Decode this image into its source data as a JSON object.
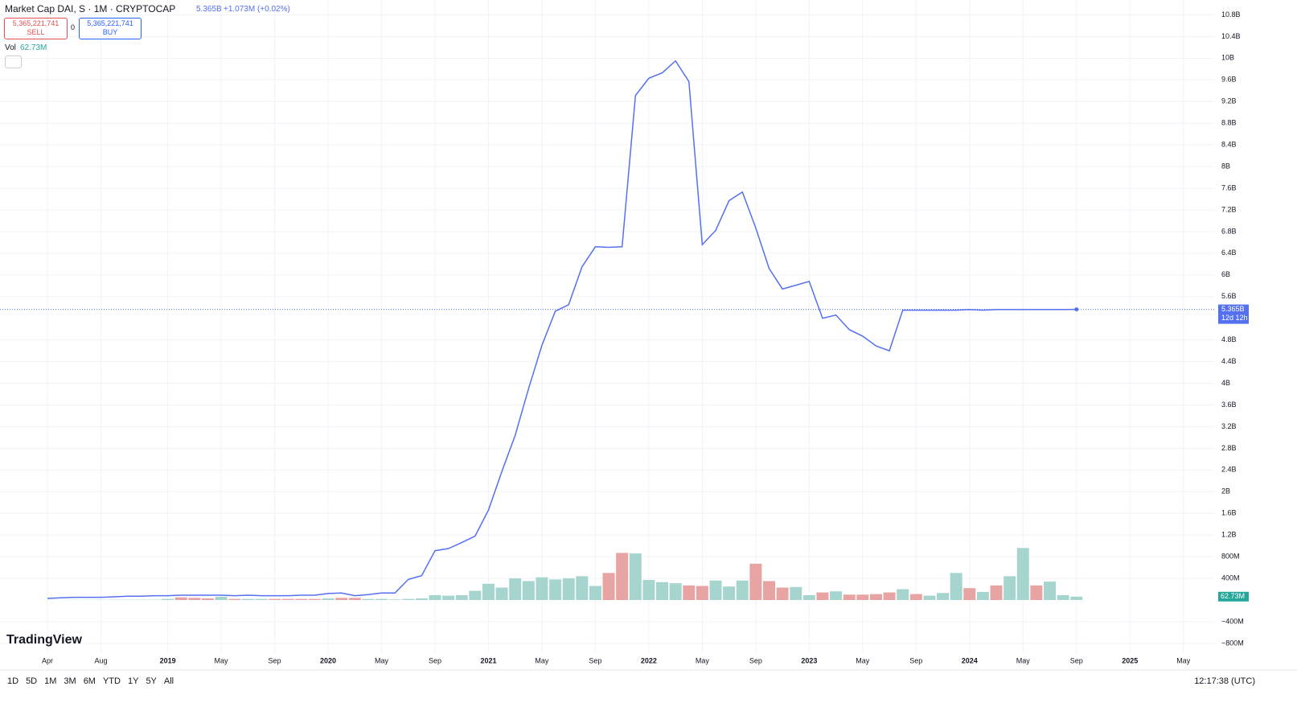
{
  "header": {
    "title": "Market Cap DAI, S · 1M · CRYPTOCAP",
    "price": "5.365B",
    "change": "+1.073M (+0.02%)",
    "sell_price": "5,365,221,741",
    "sell": "SELL",
    "spread": "0",
    "buy_price": "5,365,221,741",
    "buy": "BUY",
    "vol_label": "Vol",
    "vol_value": "62.73M"
  },
  "toolbar": {
    "brand": "TradingView",
    "ranges": [
      "1D",
      "5D",
      "1M",
      "3M",
      "6M",
      "YTD",
      "1Y",
      "5Y",
      "All"
    ],
    "clock": "12:17:38 (UTC)"
  },
  "chart_data": {
    "type": "line",
    "categories": [
      "Apr",
      null,
      null,
      null,
      "Aug",
      null,
      null,
      null,
      null,
      "2019",
      null,
      null,
      null,
      "May",
      null,
      null,
      null,
      "Sep",
      null,
      null,
      null,
      "2020",
      null,
      null,
      null,
      "May",
      null,
      null,
      null,
      "Sep",
      null,
      null,
      null,
      "2021",
      null,
      null,
      null,
      "May",
      null,
      null,
      null,
      "Sep",
      null,
      null,
      null,
      "2022",
      null,
      null,
      null,
      "May",
      null,
      null,
      null,
      "Sep",
      null,
      null,
      null,
      "2023",
      null,
      null,
      null,
      "May",
      null,
      null,
      null,
      "Sep",
      null,
      null,
      null,
      "2024",
      null,
      null,
      null,
      "May",
      null,
      null,
      null,
      "Sep",
      null,
      null,
      null,
      "2025",
      null,
      null,
      null,
      "May"
    ],
    "series": [
      {
        "name": "Market Cap DAI",
        "color": "#5470f0",
        "values": [
          0.03,
          0.04,
          0.05,
          0.05,
          0.05,
          0.06,
          0.07,
          0.07,
          0.08,
          0.08,
          0.09,
          0.09,
          0.09,
          0.09,
          0.08,
          0.09,
          0.08,
          0.08,
          0.08,
          0.09,
          0.09,
          0.12,
          0.13,
          0.08,
          0.1,
          0.13,
          0.13,
          0.38,
          0.45,
          0.91,
          0.95,
          1.06,
          1.18,
          1.66,
          2.37,
          3.04,
          3.9,
          4.7,
          5.33,
          5.45,
          6.15,
          6.52,
          6.51,
          6.52,
          9.31,
          9.63,
          9.73,
          9.95,
          9.57,
          6.56,
          6.82,
          7.37,
          7.53,
          6.87,
          6.12,
          5.74,
          5.81,
          5.88,
          5.2,
          5.26,
          4.99,
          4.87,
          4.69,
          4.6,
          5.35,
          5.35,
          5.35,
          5.35,
          5.35,
          5.36,
          5.35,
          5.36,
          5.36,
          5.36,
          5.36,
          5.36,
          5.36,
          5.365,
          null,
          null,
          null,
          null,
          null,
          null,
          null,
          null
        ]
      },
      {
        "name": "Vol",
        "type": "bar",
        "values": [
          0.002,
          0.003,
          0.004,
          0.004,
          0.005,
          0.006,
          0.006,
          0.007,
          0.008,
          0.02,
          0.05,
          0.04,
          0.03,
          0.06,
          0.02,
          0.02,
          0.02,
          0.02,
          0.02,
          0.02,
          0.02,
          0.03,
          0.04,
          0.04,
          0.02,
          0.02,
          0.01,
          0.02,
          0.03,
          0.09,
          0.08,
          0.09,
          0.17,
          0.3,
          0.23,
          0.4,
          0.35,
          0.42,
          0.38,
          0.4,
          0.44,
          0.26,
          0.5,
          0.87,
          0.86,
          0.37,
          0.33,
          0.31,
          0.27,
          0.26,
          0.36,
          0.25,
          0.36,
          0.67,
          0.35,
          0.23,
          0.24,
          0.09,
          0.14,
          0.16,
          0.1,
          0.1,
          0.11,
          0.14,
          0.2,
          0.11,
          0.08,
          0.13,
          0.5,
          0.22,
          0.15,
          0.27,
          0.44,
          0.96,
          0.27,
          0.34,
          0.09,
          0.06273,
          null,
          null,
          null,
          null,
          null,
          null,
          null,
          null
        ],
        "colors": [
          "#a6d5cf",
          "#a6d5cf",
          "#a6d5cf",
          "#a6d5cf",
          "#a6d5cf",
          "#a6d5cf",
          "#a6d5cf",
          "#a6d5cf",
          "#a6d5cf",
          "#a6d5cf",
          "#e8a3a3",
          "#e8a3a3",
          "#e8a3a3",
          "#a6d5cf",
          "#e8a3a3",
          "#a6d5cf",
          "#a6d5cf",
          "#e8a3a3",
          "#e8a3a3",
          "#e8a3a3",
          "#e8a3a3",
          "#a6d5cf",
          "#e8a3a3",
          "#e8a3a3",
          "#a6d5cf",
          "#a6d5cf",
          "#a6d5cf",
          "#a6d5cf",
          "#a6d5cf",
          "#a6d5cf",
          "#a6d5cf",
          "#a6d5cf",
          "#a6d5cf",
          "#a6d5cf",
          "#a6d5cf",
          "#a6d5cf",
          "#a6d5cf",
          "#a6d5cf",
          "#a6d5cf",
          "#a6d5cf",
          "#a6d5cf",
          "#a6d5cf",
          "#e8a3a3",
          "#e8a3a3",
          "#a6d5cf",
          "#a6d5cf",
          "#a6d5cf",
          "#a6d5cf",
          "#e8a3a3",
          "#e8a3a3",
          "#a6d5cf",
          "#a6d5cf",
          "#a6d5cf",
          "#e8a3a3",
          "#e8a3a3",
          "#e8a3a3",
          "#a6d5cf",
          "#a6d5cf",
          "#e8a3a3",
          "#a6d5cf",
          "#e8a3a3",
          "#e8a3a3",
          "#e8a3a3",
          "#e8a3a3",
          "#a6d5cf",
          "#e8a3a3",
          "#a6d5cf",
          "#a6d5cf",
          "#a6d5cf",
          "#e8a3a3",
          "#a6d5cf",
          "#e8a3a3",
          "#a6d5cf",
          "#a6d5cf",
          "#e8a3a3",
          "#a6d5cf",
          "#a6d5cf",
          "#a6d5cf",
          null,
          null,
          null,
          null,
          null,
          null,
          null,
          null
        ]
      }
    ],
    "ylim": [
      -0.95,
      11.0
    ],
    "yticks": [
      {
        "value": -0.8,
        "label": "−800M"
      },
      {
        "value": -0.4,
        "label": "−400M"
      },
      {
        "value": 0.4,
        "label": "400M"
      },
      {
        "value": 0.8,
        "label": "800M"
      },
      {
        "value": 1.2,
        "label": "1.2B"
      },
      {
        "value": 1.6,
        "label": "1.6B"
      },
      {
        "value": 2,
        "label": "2B"
      },
      {
        "value": 2.4,
        "label": "2.4B"
      },
      {
        "value": 2.8,
        "label": "2.8B"
      },
      {
        "value": 3.2,
        "label": "3.2B"
      },
      {
        "value": 3.6,
        "label": "3.6B"
      },
      {
        "value": 4,
        "label": "4B"
      },
      {
        "value": 4.4,
        "label": "4.4B"
      },
      {
        "value": 4.8,
        "label": "4.8B"
      },
      {
        "value": 5.6,
        "label": "5.6B"
      },
      {
        "value": 6,
        "label": "6B"
      },
      {
        "value": 6.4,
        "label": "6.4B"
      },
      {
        "value": 6.8,
        "label": "6.8B"
      },
      {
        "value": 7.2,
        "label": "7.2B"
      },
      {
        "value": 7.6,
        "label": "7.6B"
      },
      {
        "value": 8,
        "label": "8B"
      },
      {
        "value": 8.4,
        "label": "8.4B"
      },
      {
        "value": 8.8,
        "label": "8.8B"
      },
      {
        "value": 9.2,
        "label": "9.2B"
      },
      {
        "value": 9.6,
        "label": "9.6B"
      },
      {
        "value": 10,
        "label": "10B"
      },
      {
        "value": 10.4,
        "label": "10.4B"
      },
      {
        "value": 10.8,
        "label": "10.8B"
      }
    ],
    "grid": true,
    "last_price_label": "5.365B",
    "countdown": "12d 12h",
    "last_volume_label": "62.73M"
  }
}
